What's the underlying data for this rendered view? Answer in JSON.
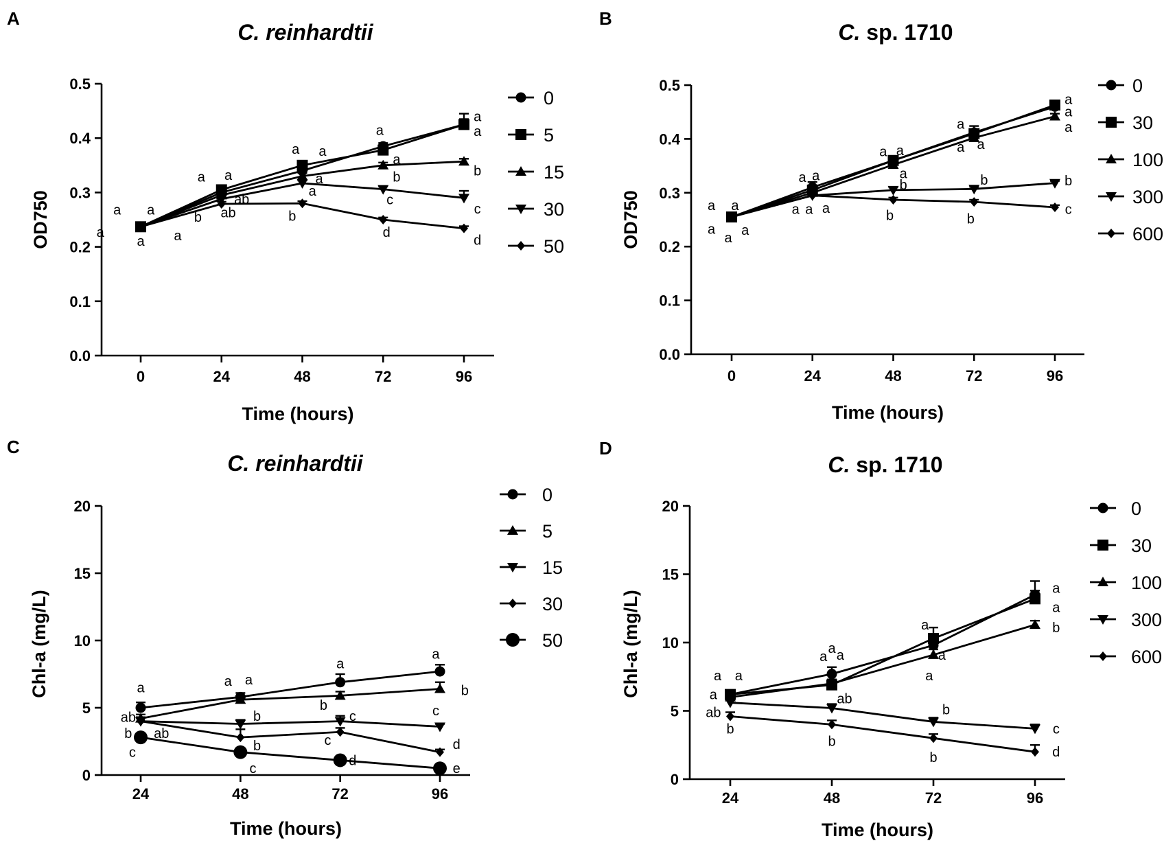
{
  "chart_data": [
    {
      "panel": "A",
      "type": "line",
      "title": {
        "italic": "C. reinhardtii",
        "plain": ""
      },
      "xlabel": "Time (hours)",
      "ylabel": "OD750",
      "x": [
        0,
        24,
        48,
        72,
        96
      ],
      "xticks": [
        "0",
        "24",
        "48",
        "72",
        "96"
      ],
      "ylim": [
        0,
        0.5
      ],
      "yticks": [
        "0.0",
        "0.1",
        "0.2",
        "0.3",
        "0.4",
        "0.5"
      ],
      "legend": "right",
      "series": [
        {
          "name": "0",
          "marker": "circle",
          "values": [
            0.237,
            0.3,
            0.34,
            0.385,
            0.425
          ],
          "err": [
            0.004,
            0.006,
            0.007,
            0.006,
            0.01
          ]
        },
        {
          "name": "5",
          "marker": "square",
          "values": [
            0.237,
            0.305,
            0.35,
            0.378,
            0.425
          ],
          "err": [
            0.004,
            0.006,
            0.007,
            0.006,
            0.02
          ]
        },
        {
          "name": "15",
          "marker": "triangle-up",
          "values": [
            0.237,
            0.295,
            0.33,
            0.35,
            0.357
          ],
          "err": [
            0.004,
            0.005,
            0.006,
            0.005,
            0.005
          ]
        },
        {
          "name": "30",
          "marker": "triangle-down",
          "values": [
            0.237,
            0.288,
            0.317,
            0.306,
            0.29
          ],
          "err": [
            0.004,
            0.005,
            0.005,
            0.005,
            0.013
          ]
        },
        {
          "name": "50",
          "marker": "diamond",
          "values": [
            0.237,
            0.279,
            0.28,
            0.25,
            0.234
          ],
          "err": [
            0.004,
            0.004,
            0.004,
            0.004,
            0.004
          ]
        }
      ],
      "annotations": [
        {
          "text": "a",
          "x": -7,
          "y": 0.268
        },
        {
          "text": "a",
          "x": 3,
          "y": 0.268
        },
        {
          "text": "a",
          "x": -12,
          "y": 0.227
        },
        {
          "text": "a",
          "x": 0,
          "y": 0.211
        },
        {
          "text": "a",
          "x": 11,
          "y": 0.221
        },
        {
          "text": "a",
          "x": 18,
          "y": 0.329
        },
        {
          "text": "a",
          "x": 26,
          "y": 0.332
        },
        {
          "text": "ab",
          "x": 30,
          "y": 0.288
        },
        {
          "text": "ab",
          "x": 26,
          "y": 0.263
        },
        {
          "text": "b",
          "x": 17,
          "y": 0.255
        },
        {
          "text": "a",
          "x": 46,
          "y": 0.38
        },
        {
          "text": "a",
          "x": 54,
          "y": 0.376
        },
        {
          "text": "a",
          "x": 53,
          "y": 0.326
        },
        {
          "text": "a",
          "x": 51,
          "y": 0.303
        },
        {
          "text": "b",
          "x": 45,
          "y": 0.257
        },
        {
          "text": "a",
          "x": 71,
          "y": 0.415
        },
        {
          "text": "a",
          "x": 76,
          "y": 0.361
        },
        {
          "text": "b",
          "x": 76,
          "y": 0.329
        },
        {
          "text": "c",
          "x": 74,
          "y": 0.287
        },
        {
          "text": "d",
          "x": 73,
          "y": 0.227
        },
        {
          "text": "a",
          "x": 100,
          "y": 0.44
        },
        {
          "text": "a",
          "x": 100,
          "y": 0.413
        },
        {
          "text": "b",
          "x": 100,
          "y": 0.34
        },
        {
          "text": "c",
          "x": 100,
          "y": 0.27
        },
        {
          "text": "d",
          "x": 100,
          "y": 0.213
        }
      ]
    },
    {
      "panel": "B",
      "type": "line",
      "title": {
        "italic": "C.",
        "plain": " sp. 1710"
      },
      "xlabel": "Time (hours)",
      "ylabel": "OD750",
      "x": [
        0,
        24,
        48,
        72,
        96
      ],
      "xticks": [
        "0",
        "24",
        "48",
        "72",
        "96"
      ],
      "ylim": [
        0,
        0.5
      ],
      "yticks": [
        "0.0",
        "0.1",
        "0.2",
        "0.3",
        "0.4",
        "0.5"
      ],
      "legend": "right",
      "series": [
        {
          "name": "0",
          "marker": "circle",
          "values": [
            0.255,
            0.31,
            0.36,
            0.412,
            0.46
          ],
          "err": [
            0.004,
            0.01,
            0.007,
            0.012,
            0.006
          ]
        },
        {
          "name": "30",
          "marker": "square",
          "values": [
            0.255,
            0.305,
            0.36,
            0.41,
            0.463
          ],
          "err": [
            0.004,
            0.006,
            0.006,
            0.008,
            0.006
          ]
        },
        {
          "name": "100",
          "marker": "triangle-up",
          "values": [
            0.255,
            0.3,
            0.352,
            0.402,
            0.442
          ],
          "err": [
            0.004,
            0.005,
            0.005,
            0.005,
            0.005
          ]
        },
        {
          "name": "300",
          "marker": "triangle-down",
          "values": [
            0.255,
            0.295,
            0.305,
            0.307,
            0.318
          ],
          "err": [
            0.004,
            0.005,
            0.005,
            0.004,
            0.004
          ]
        },
        {
          "name": "600",
          "marker": "diamond",
          "values": [
            0.255,
            0.295,
            0.287,
            0.283,
            0.273
          ],
          "err": [
            0.004,
            0.004,
            0.004,
            0.004,
            0.004
          ]
        }
      ],
      "annotations": [
        {
          "text": "a",
          "x": -6,
          "y": 0.277
        },
        {
          "text": "a",
          "x": 1,
          "y": 0.277
        },
        {
          "text": "a",
          "x": -6,
          "y": 0.233
        },
        {
          "text": "a",
          "x": 4,
          "y": 0.231
        },
        {
          "text": "a",
          "x": -1,
          "y": 0.217
        },
        {
          "text": "a",
          "x": 21,
          "y": 0.329
        },
        {
          "text": "a",
          "x": 25,
          "y": 0.332
        },
        {
          "text": "a",
          "x": 19,
          "y": 0.27
        },
        {
          "text": "a",
          "x": 23,
          "y": 0.27
        },
        {
          "text": "a",
          "x": 28,
          "y": 0.272
        },
        {
          "text": "a",
          "x": 45,
          "y": 0.377
        },
        {
          "text": "a",
          "x": 50,
          "y": 0.379
        },
        {
          "text": "a",
          "x": 51,
          "y": 0.336
        },
        {
          "text": "b",
          "x": 51,
          "y": 0.315
        },
        {
          "text": "b",
          "x": 47,
          "y": 0.258
        },
        {
          "text": "a",
          "x": 68,
          "y": 0.428
        },
        {
          "text": "a",
          "x": 68,
          "y": 0.385
        },
        {
          "text": "a",
          "x": 74,
          "y": 0.39
        },
        {
          "text": "b",
          "x": 75,
          "y": 0.324
        },
        {
          "text": "b",
          "x": 71,
          "y": 0.252
        },
        {
          "text": "a",
          "x": 100,
          "y": 0.474
        },
        {
          "text": "a",
          "x": 100,
          "y": 0.451
        },
        {
          "text": "a",
          "x": 100,
          "y": 0.422
        },
        {
          "text": "b",
          "x": 100,
          "y": 0.323
        },
        {
          "text": "c",
          "x": 100,
          "y": 0.27
        }
      ]
    },
    {
      "panel": "C",
      "type": "line",
      "title": {
        "italic": "C. reinhardtii",
        "plain": ""
      },
      "xlabel": "Time (hours)",
      "ylabel": "Chl-a (mg/L)",
      "x": [
        24,
        48,
        72,
        96
      ],
      "xticks": [
        "24",
        "48",
        "72",
        "96"
      ],
      "ylim": [
        0,
        20
      ],
      "yticks": [
        "0",
        "5",
        "10",
        "15",
        "20"
      ],
      "legend": "right",
      "series": [
        {
          "name": "0",
          "marker": "circle",
          "values": [
            5.0,
            5.8,
            6.9,
            7.7
          ],
          "err": [
            0.4,
            0.3,
            0.6,
            0.5
          ]
        },
        {
          "name": "5",
          "marker": "triangle-up",
          "values": [
            4.2,
            5.6,
            5.9,
            6.4
          ],
          "err": [
            0.3,
            0.3,
            0.3,
            0.5
          ]
        },
        {
          "name": "15",
          "marker": "triangle-down",
          "values": [
            4.0,
            3.8,
            4.0,
            3.6
          ],
          "err": [
            0.3,
            0.3,
            0.4,
            0.2
          ]
        },
        {
          "name": "30",
          "marker": "diamond",
          "values": [
            4.0,
            2.8,
            3.2,
            1.7
          ],
          "err": [
            0.3,
            0.6,
            0.3,
            0.2
          ]
        },
        {
          "name": "50",
          "marker": "big-circle",
          "values": [
            2.8,
            1.7,
            1.1,
            0.5
          ],
          "err": [
            0.2,
            0.2,
            0.2,
            0.2
          ]
        }
      ],
      "annotations": [
        {
          "text": "a",
          "x": 24,
          "y": 6.5
        },
        {
          "text": "ab",
          "x": 21,
          "y": 4.3
        },
        {
          "text": "b",
          "x": 21,
          "y": 3.1
        },
        {
          "text": "ab",
          "x": 29,
          "y": 3.1
        },
        {
          "text": "c",
          "x": 22,
          "y": 1.7
        },
        {
          "text": "a",
          "x": 45,
          "y": 7.0
        },
        {
          "text": "a",
          "x": 50,
          "y": 7.1
        },
        {
          "text": "b",
          "x": 52,
          "y": 4.4
        },
        {
          "text": "b",
          "x": 52,
          "y": 2.2
        },
        {
          "text": "c",
          "x": 51,
          "y": 0.5
        },
        {
          "text": "a",
          "x": 72,
          "y": 8.3
        },
        {
          "text": "b",
          "x": 68,
          "y": 5.2
        },
        {
          "text": "c",
          "x": 75,
          "y": 4.4
        },
        {
          "text": "c",
          "x": 69,
          "y": 2.6
        },
        {
          "text": "d",
          "x": 75,
          "y": 1.1
        },
        {
          "text": "a",
          "x": 95,
          "y": 9.0
        },
        {
          "text": "c",
          "x": 95,
          "y": 4.8
        },
        {
          "text": "b",
          "x": 102,
          "y": 6.3
        },
        {
          "text": "d",
          "x": 100,
          "y": 2.3
        },
        {
          "text": "e",
          "x": 100,
          "y": 0.5
        }
      ]
    },
    {
      "panel": "D",
      "type": "line",
      "title": {
        "italic": "C.",
        "plain": " sp. 1710"
      },
      "xlabel": "Time (hours)",
      "ylabel": "Chl-a (mg/L)",
      "x": [
        24,
        48,
        72,
        96
      ],
      "xticks": [
        "24",
        "48",
        "72",
        "96"
      ],
      "ylim": [
        0,
        20
      ],
      "yticks": [
        "0",
        "5",
        "10",
        "15",
        "20"
      ],
      "legend": "right",
      "series": [
        {
          "name": "0",
          "marker": "circle",
          "values": [
            6.2,
            7.7,
            9.8,
            13.5
          ],
          "err": [
            0.3,
            0.5,
            0.6,
            1.0
          ]
        },
        {
          "name": "30",
          "marker": "square",
          "values": [
            6.2,
            6.9,
            10.3,
            13.2
          ],
          "err": [
            0.3,
            0.3,
            0.8,
            0.6
          ]
        },
        {
          "name": "100",
          "marker": "triangle-up",
          "values": [
            6.0,
            7.0,
            9.1,
            11.3
          ],
          "err": [
            0.3,
            0.3,
            0.4,
            0.3
          ]
        },
        {
          "name": "300",
          "marker": "triangle-down",
          "values": [
            5.6,
            5.2,
            4.2,
            3.7
          ],
          "err": [
            0.3,
            0.3,
            0.3,
            0.3
          ]
        },
        {
          "name": "600",
          "marker": "diamond",
          "values": [
            4.6,
            4.0,
            3.0,
            2.0
          ],
          "err": [
            0.3,
            0.3,
            0.3,
            0.5
          ]
        }
      ],
      "annotations": [
        {
          "text": "a",
          "x": 21,
          "y": 7.6
        },
        {
          "text": "a",
          "x": 26,
          "y": 7.6
        },
        {
          "text": "a",
          "x": 20,
          "y": 6.2
        },
        {
          "text": "ab",
          "x": 20,
          "y": 4.9
        },
        {
          "text": "b",
          "x": 24,
          "y": 3.7
        },
        {
          "text": "a",
          "x": 46,
          "y": 9.0
        },
        {
          "text": "a",
          "x": 48,
          "y": 9.6
        },
        {
          "text": "a",
          "x": 50,
          "y": 9.1
        },
        {
          "text": "ab",
          "x": 51,
          "y": 5.9
        },
        {
          "text": "b",
          "x": 48,
          "y": 2.8
        },
        {
          "text": "a",
          "x": 70,
          "y": 11.3
        },
        {
          "text": "a",
          "x": 74,
          "y": 9.1
        },
        {
          "text": "a",
          "x": 71,
          "y": 7.6
        },
        {
          "text": "b",
          "x": 75,
          "y": 5.1
        },
        {
          "text": "b",
          "x": 72,
          "y": 1.6
        },
        {
          "text": "a",
          "x": 101,
          "y": 14.0
        },
        {
          "text": "a",
          "x": 101,
          "y": 12.6
        },
        {
          "text": "b",
          "x": 101,
          "y": 11.1
        },
        {
          "text": "c",
          "x": 101,
          "y": 3.7
        },
        {
          "text": "d",
          "x": 101,
          "y": 2.0
        }
      ]
    }
  ]
}
